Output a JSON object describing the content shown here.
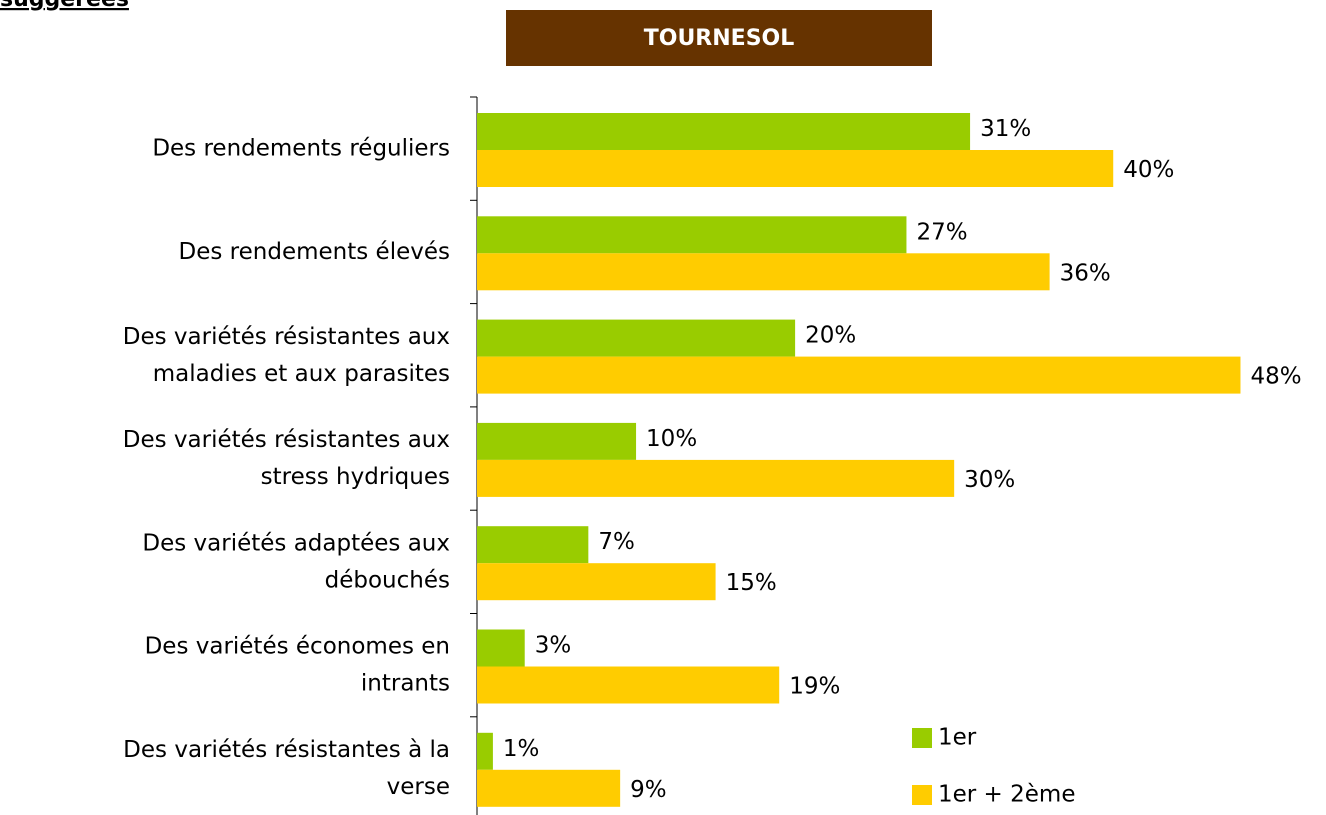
{
  "page_header": "suggérées",
  "chart_data": {
    "type": "hbar",
    "title": "TOURNESOL",
    "categories": [
      "Des rendements réguliers",
      "Des rendements élevés",
      "Des variétés résistantes aux\nmaladies et aux parasites",
      "Des variétés résistantes aux\nstress hydriques",
      "Des variétés adaptées aux\ndébouchés",
      "Des variétés économes en\nintrants",
      "Des variétés résistantes à la\nverse"
    ],
    "series": [
      {
        "name": "1er",
        "color": "#99cc00",
        "values": [
          31,
          27,
          20,
          10,
          7,
          3,
          1
        ],
        "value_labels": [
          "31%",
          "27%",
          "20%",
          "10%",
          "7%",
          "3%",
          "1%"
        ]
      },
      {
        "name": "1er + 2ème",
        "color": "#ffcc00",
        "values": [
          40,
          36,
          48,
          30,
          15,
          19,
          9
        ],
        "value_labels": [
          "40%",
          "36%",
          "48%",
          "30%",
          "15%",
          "19%",
          "9%"
        ]
      }
    ],
    "xlim": [
      0,
      53
    ]
  }
}
